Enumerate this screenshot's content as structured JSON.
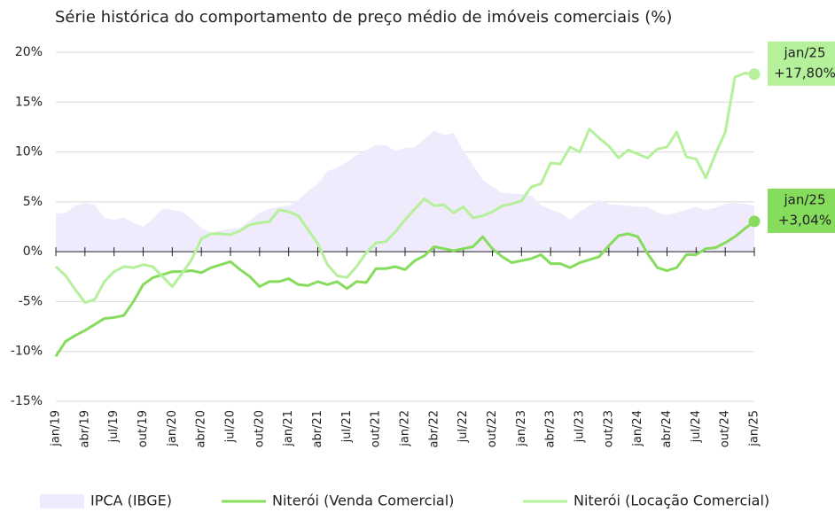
{
  "chart_data": {
    "type": "line",
    "title": "Série histórica do comportamento de preço médio de imóveis comerciais (%)",
    "categories": [
      "jan/19",
      null,
      null,
      "abr/19",
      null,
      null,
      "jul/19",
      null,
      null,
      "out/19",
      null,
      null,
      "jan/20",
      null,
      null,
      "abr/20",
      null,
      null,
      "jul/20",
      null,
      null,
      "out/20",
      null,
      null,
      "jan/21",
      null,
      null,
      "abr/21",
      null,
      null,
      "jul/21",
      null,
      null,
      "out/21",
      null,
      null,
      "jan/22",
      null,
      null,
      "abr/22",
      null,
      null,
      "jul/22",
      null,
      null,
      "out/22",
      null,
      null,
      "jan/23",
      null,
      null,
      "abr/23",
      null,
      null,
      "jul/23",
      null,
      null,
      "out/23",
      null,
      null,
      "jan/24",
      null,
      null,
      "abr/24",
      null,
      null,
      "jul/24",
      null,
      null,
      "out/24",
      null,
      null,
      "jan/25"
    ],
    "ylim": [
      -15,
      20
    ],
    "yticks": [
      {
        "value": -15,
        "label": "-15%"
      },
      {
        "value": -10,
        "label": "-10%"
      },
      {
        "value": -5,
        "label": "-5%"
      },
      {
        "value": 0,
        "label": "0%"
      },
      {
        "value": 5,
        "label": "5%"
      },
      {
        "value": 10,
        "label": "10%"
      },
      {
        "value": 15,
        "label": "15%"
      },
      {
        "value": 20,
        "label": "20%"
      }
    ],
    "grid": true,
    "legend": "bottom",
    "series": [
      {
        "name": "IPCA (IBGE)",
        "kind": "area",
        "color": "#efeafc",
        "values": [
          3.8,
          3.9,
          4.6,
          4.9,
          4.7,
          3.4,
          3.2,
          3.4,
          2.9,
          2.5,
          3.3,
          4.3,
          4.2,
          4.0,
          3.3,
          2.4,
          1.9,
          2.1,
          2.3,
          2.4,
          3.1,
          3.9,
          4.3,
          4.5,
          4.6,
          5.2,
          6.1,
          6.8,
          8.1,
          8.4,
          9.0,
          9.7,
          10.2,
          10.7,
          10.7,
          10.1,
          10.4,
          10.5,
          11.3,
          12.1,
          11.7,
          11.9,
          10.1,
          8.7,
          7.2,
          6.5,
          5.9,
          5.8,
          5.8,
          5.6,
          4.7,
          4.2,
          3.9,
          3.2,
          4.0,
          4.6,
          5.2,
          4.8,
          4.7,
          4.6,
          4.5,
          4.5,
          3.9,
          3.7,
          3.9,
          4.2,
          4.5,
          4.2,
          4.4,
          4.8,
          4.9,
          4.8,
          4.6
        ]
      },
      {
        "name": "Niterói (Venda Comercial)",
        "kind": "line",
        "color": "#86dc5c",
        "end_label": [
          "jan/25",
          "+3,04%"
        ],
        "values": [
          -10.5,
          -9.0,
          -8.4,
          -7.9,
          -7.3,
          -6.7,
          -6.6,
          -6.4,
          -5.0,
          -3.3,
          -2.6,
          -2.3,
          -2.0,
          -2.0,
          -1.9,
          -2.1,
          -1.6,
          -1.3,
          -1.0,
          -1.8,
          -2.5,
          -3.5,
          -3.0,
          -3.0,
          -2.7,
          -3.3,
          -3.4,
          -3.0,
          -3.3,
          -3.0,
          -3.7,
          -3.0,
          -3.1,
          -1.7,
          -1.7,
          -1.5,
          -1.8,
          -0.9,
          -0.4,
          0.5,
          0.3,
          0.1,
          0.3,
          0.5,
          1.5,
          0.3,
          -0.5,
          -1.1,
          -0.9,
          -0.7,
          -0.3,
          -1.2,
          -1.2,
          -1.6,
          -1.1,
          -0.8,
          -0.5,
          0.6,
          1.6,
          1.8,
          1.5,
          -0.2,
          -1.6,
          -1.9,
          -1.6,
          -0.3,
          -0.3,
          0.3,
          0.4,
          0.9,
          1.5,
          2.3,
          3.04
        ]
      },
      {
        "name": "Niterói (Locação Comercial)",
        "kind": "line",
        "color": "#b4f19a",
        "end_label": [
          "jan/25",
          "+17,80%"
        ],
        "values": [
          -1.5,
          -2.4,
          -3.8,
          -5.1,
          -4.8,
          -3.0,
          -2.0,
          -1.5,
          -1.6,
          -1.3,
          -1.5,
          -2.5,
          -3.5,
          -2.2,
          -0.8,
          1.3,
          1.8,
          1.8,
          1.7,
          2.1,
          2.7,
          2.9,
          3.0,
          4.2,
          4.0,
          3.6,
          2.2,
          0.8,
          -1.3,
          -2.4,
          -2.6,
          -1.5,
          -0.1,
          0.9,
          1.0,
          2.0,
          3.2,
          4.3,
          5.3,
          4.6,
          4.7,
          3.9,
          4.5,
          3.4,
          3.6,
          4.0,
          4.6,
          4.8,
          5.1,
          6.5,
          6.8,
          8.9,
          8.8,
          10.5,
          10.0,
          12.3,
          11.4,
          10.6,
          9.4,
          10.2,
          9.8,
          9.4,
          10.3,
          10.5,
          12.0,
          9.5,
          9.3,
          7.4,
          9.8,
          12.0,
          17.5,
          17.9,
          17.8
        ]
      }
    ]
  }
}
